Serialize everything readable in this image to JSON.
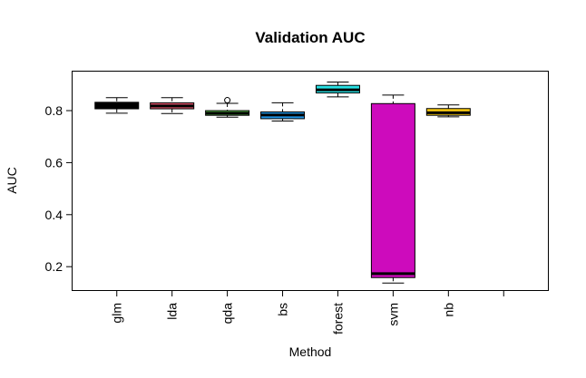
{
  "chart_data": {
    "type": "boxplot",
    "title": "Validation AUC",
    "xlabel": "Method",
    "ylabel": "AUC",
    "ylim": [
      0.11,
      0.95
    ],
    "yticks": [
      0.2,
      0.4,
      0.6,
      0.8
    ],
    "ytick_labels": [
      "0.2",
      "0.4",
      "0.6",
      "0.8"
    ],
    "categories": [
      "glm",
      "lda",
      "qda",
      "bs",
      "forest",
      "svm",
      "nb"
    ],
    "category_slots": 8,
    "grid": false,
    "legend": "none",
    "boxes": [
      {
        "name": "glm",
        "color": "#000000",
        "median_color": "#000000",
        "whisker_low": 0.79,
        "q1": 0.807,
        "median": 0.818,
        "q3": 0.832,
        "whisker_high": 0.85,
        "outliers": []
      },
      {
        "name": "lda",
        "color": "#DF536B",
        "median_color": "#000000",
        "whisker_low": 0.789,
        "q1": 0.807,
        "median": 0.818,
        "q3": 0.83,
        "whisker_high": 0.85,
        "outliers": []
      },
      {
        "name": "qda",
        "color": "#61D04F",
        "median_color": "#000000",
        "whisker_low": 0.775,
        "q1": 0.782,
        "median": 0.79,
        "q3": 0.8,
        "whisker_high": 0.828,
        "outliers": [
          0.84
        ]
      },
      {
        "name": "bs",
        "color": "#2297E6",
        "median_color": "#000000",
        "whisker_low": 0.76,
        "q1": 0.769,
        "median": 0.783,
        "q3": 0.795,
        "whisker_high": 0.83,
        "outliers": []
      },
      {
        "name": "forest",
        "color": "#28E2E5",
        "median_color": "#000000",
        "whisker_low": 0.853,
        "q1": 0.868,
        "median": 0.88,
        "q3": 0.897,
        "whisker_high": 0.91,
        "outliers": []
      },
      {
        "name": "svm",
        "color": "#CD0BBC",
        "median_color": "#000000",
        "whisker_low": 0.137,
        "q1": 0.158,
        "median": 0.173,
        "q3": 0.827,
        "whisker_high": 0.86,
        "outliers": []
      },
      {
        "name": "nb",
        "color": "#F5C710",
        "median_color": "#000000",
        "whisker_low": 0.776,
        "q1": 0.782,
        "median": 0.792,
        "q3": 0.808,
        "whisker_high": 0.822,
        "outliers": []
      }
    ]
  }
}
